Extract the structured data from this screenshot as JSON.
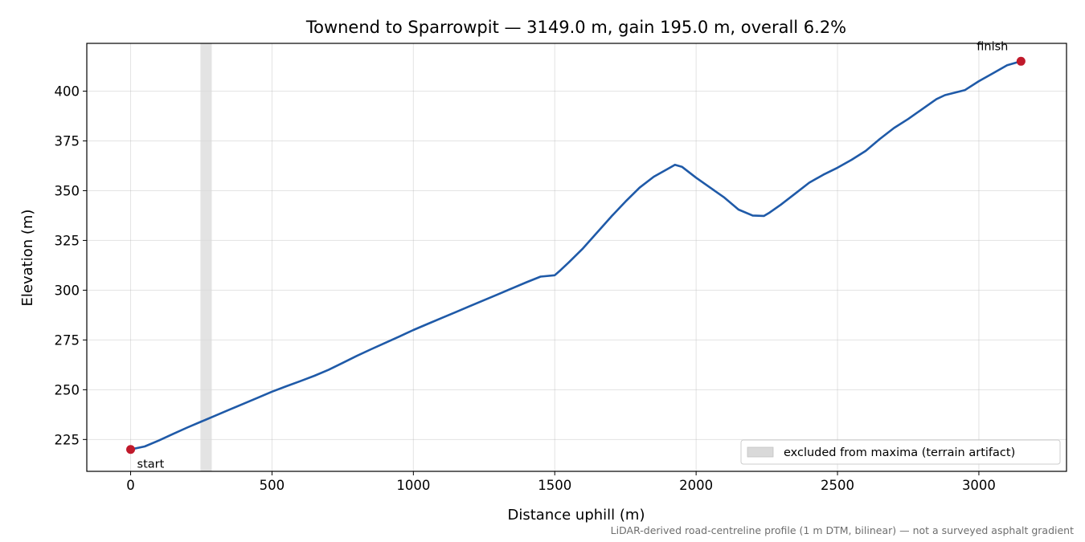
{
  "chart_data": {
    "type": "line",
    "title": "Townend to Sparrowpit — 3149.0 m, gain 195.0 m, overall 6.2%",
    "xlabel": "Distance uphill (m)",
    "ylabel": "Elevation (m)",
    "xlim": [
      -155,
      3310
    ],
    "ylim": [
      209,
      424
    ],
    "xticks": [
      0,
      500,
      1000,
      1500,
      2000,
      2500,
      3000
    ],
    "yticks": [
      225,
      250,
      275,
      300,
      325,
      350,
      375,
      400
    ],
    "grid": true,
    "line_color": "#1f5aa8",
    "marker_color": "#c0192b",
    "series": [
      {
        "x": [
          0,
          50,
          100,
          150,
          200,
          250,
          300,
          350,
          400,
          450,
          500,
          550,
          600,
          650,
          700,
          750,
          800,
          850,
          900,
          950,
          1000,
          1050,
          1100,
          1150,
          1200,
          1250,
          1300,
          1350,
          1400,
          1450,
          1500,
          1520,
          1550,
          1600,
          1650,
          1700,
          1750,
          1800,
          1850,
          1900,
          1925,
          1950,
          2000,
          2050,
          2100,
          2150,
          2200,
          2240,
          2260,
          2300,
          2350,
          2400,
          2450,
          2500,
          2550,
          2600,
          2650,
          2700,
          2750,
          2800,
          2850,
          2880,
          2950,
          3000,
          3050,
          3100,
          3149
        ],
        "y": [
          220,
          221.5,
          224.5,
          227.8,
          231,
          234,
          237,
          240,
          243,
          246,
          249,
          251.7,
          254.3,
          257,
          260,
          263.5,
          267,
          270.3,
          273.5,
          276.7,
          280,
          283,
          286,
          289,
          292,
          295,
          298,
          301,
          304,
          306.8,
          307.5,
          310,
          314,
          321,
          329,
          337,
          344.5,
          351.5,
          357,
          361,
          363,
          362,
          356.5,
          351.5,
          346.5,
          340.5,
          337.5,
          337.3,
          339,
          343,
          348.5,
          354,
          358,
          361.5,
          365.5,
          370,
          376,
          381.5,
          386,
          391,
          396,
          398,
          400.5,
          405,
          409,
          413,
          415
        ]
      }
    ],
    "markers": [
      {
        "label": "start",
        "x": 0,
        "y": 220
      },
      {
        "label": "finish",
        "x": 3149,
        "y": 415
      }
    ],
    "excluded_band": {
      "x0": 247,
      "x1": 287,
      "color": "#d9d9d9"
    },
    "legend": {
      "position": "bottom-right",
      "entries": [
        "excluded from maxima (terrain artifact)"
      ]
    },
    "footnote": "LiDAR-derived road-centreline profile (1 m DTM, bilinear) — not a surveyed asphalt gradient"
  }
}
